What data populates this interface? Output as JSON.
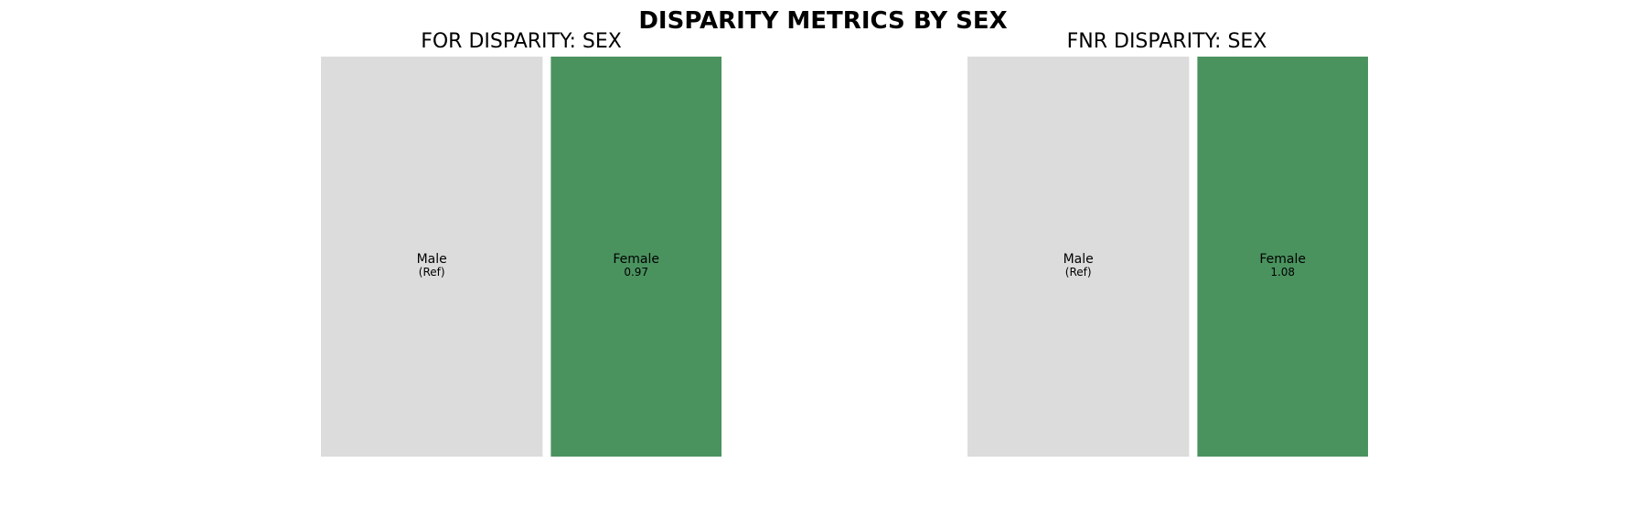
{
  "title": "DISPARITY METRICS BY SEX",
  "chart_data": [
    {
      "type": "treemap",
      "title": "FOR DISPARITY: SEX",
      "cells": [
        {
          "label": "Male",
          "value_text": "(Ref)",
          "value": 1.0,
          "area": 0.565,
          "color": "#dcdcdc"
        },
        {
          "label": "Female",
          "value_text": "0.97",
          "value": 0.97,
          "area": 0.435,
          "color": "#4a935f"
        }
      ]
    },
    {
      "type": "treemap",
      "title": "FNR DISPARITY: SEX",
      "cells": [
        {
          "label": "Male",
          "value_text": "(Ref)",
          "value": 1.0,
          "area": 0.565,
          "color": "#dcdcdc"
        },
        {
          "label": "Female",
          "value_text": "1.08",
          "value": 1.08,
          "area": 0.435,
          "color": "#4a935f"
        }
      ]
    }
  ]
}
